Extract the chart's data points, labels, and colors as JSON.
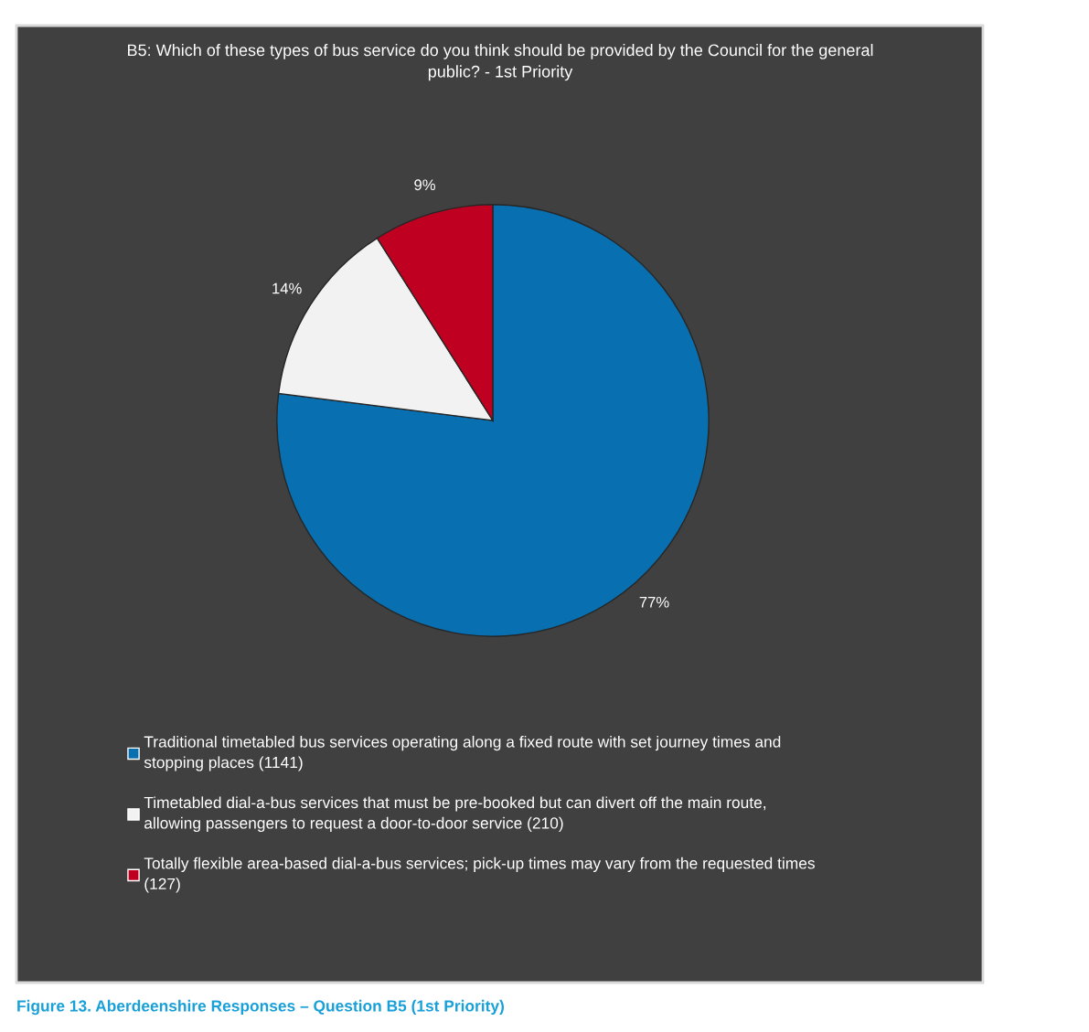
{
  "chart_data": {
    "type": "pie",
    "title": "B5: Which of these types of bus service do you think should be provided by the Council for the general public? - 1st Priority",
    "categories": [
      "Traditional timetabled bus services operating along a fixed route with set journey times and stopping places (1141)",
      "Timetabled dial-a-bus services that must be pre-booked but can divert off the main route, allowing passengers to request a door-to-door service (210)",
      "Totally flexible area-based dial-a-bus services; pick-up times may vary from the requested times (127)"
    ],
    "values": [
      77,
      14,
      9
    ],
    "value_labels": [
      "77%",
      "14%",
      "9%"
    ],
    "colors": [
      "#0870b0",
      "#f2f2f2",
      "#c00020"
    ],
    "legend": "bottom",
    "annotations": [
      "Figure 13. Aberdeenshire Responses – Question B5 (1st Priority)"
    ]
  }
}
